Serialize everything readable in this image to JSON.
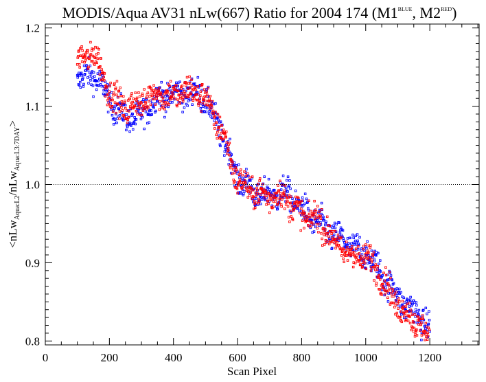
{
  "chart_data": {
    "type": "scatter",
    "title": {
      "main": "MODIS/Aqua AV31 nLw(667) Ratio for 2004 174 (M1",
      "m1_sup": "BLUE",
      "sep": ", M2",
      "m2_sup": "RED",
      "close": ")"
    },
    "xlabel": "Scan Pixel",
    "ylabel": {
      "open": "<nLw",
      "sub1": "Aqua:L2",
      "mid": "/nLw",
      "sub2": "Aqua:L3:7DAY",
      "close": ">"
    },
    "xlim": [
      0,
      1354
    ],
    "ylim": [
      0.795,
      1.205
    ],
    "xticks": [
      0,
      200,
      400,
      600,
      800,
      1000,
      1200
    ],
    "xtick_labels": [
      "0",
      "200",
      "400",
      "600",
      "800",
      "1000",
      "1200"
    ],
    "yticks": [
      0.8,
      0.9,
      1.0,
      1.1,
      1.2
    ],
    "ytick_labels": [
      "0.8",
      "0.9",
      "1.0",
      "1.1",
      "1.2"
    ],
    "reference_line": 1.0,
    "grid": false,
    "series": [
      {
        "color": "#0000ff",
        "trend": [
          [
            100,
            1.14
          ],
          [
            150,
            1.14
          ],
          [
            200,
            1.105
          ],
          [
            250,
            1.09
          ],
          [
            300,
            1.085
          ],
          [
            350,
            1.11
          ],
          [
            400,
            1.12
          ],
          [
            450,
            1.115
          ],
          [
            500,
            1.11
          ],
          [
            550,
            1.07
          ],
          [
            600,
            1.005
          ],
          [
            650,
            0.99
          ],
          [
            700,
            0.99
          ],
          [
            750,
            0.985
          ],
          [
            800,
            0.97
          ],
          [
            850,
            0.955
          ],
          [
            900,
            0.93
          ],
          [
            950,
            0.925
          ],
          [
            1000,
            0.915
          ],
          [
            1050,
            0.88
          ],
          [
            1100,
            0.86
          ],
          [
            1150,
            0.84
          ],
          [
            1200,
            0.81
          ]
        ]
      },
      {
        "color": "#ff0000",
        "trend": [
          [
            100,
            1.16
          ],
          [
            150,
            1.165
          ],
          [
            200,
            1.12
          ],
          [
            250,
            1.1
          ],
          [
            300,
            1.1
          ],
          [
            350,
            1.12
          ],
          [
            400,
            1.115
          ],
          [
            450,
            1.115
          ],
          [
            500,
            1.115
          ],
          [
            550,
            1.07
          ],
          [
            600,
            1.0
          ],
          [
            650,
            0.995
          ],
          [
            700,
            0.985
          ],
          [
            750,
            0.98
          ],
          [
            800,
            0.965
          ],
          [
            850,
            0.955
          ],
          [
            900,
            0.925
          ],
          [
            950,
            0.915
          ],
          [
            1000,
            0.905
          ],
          [
            1050,
            0.88
          ],
          [
            1100,
            0.85
          ],
          [
            1150,
            0.825
          ],
          [
            1200,
            0.8
          ]
        ]
      }
    ]
  }
}
